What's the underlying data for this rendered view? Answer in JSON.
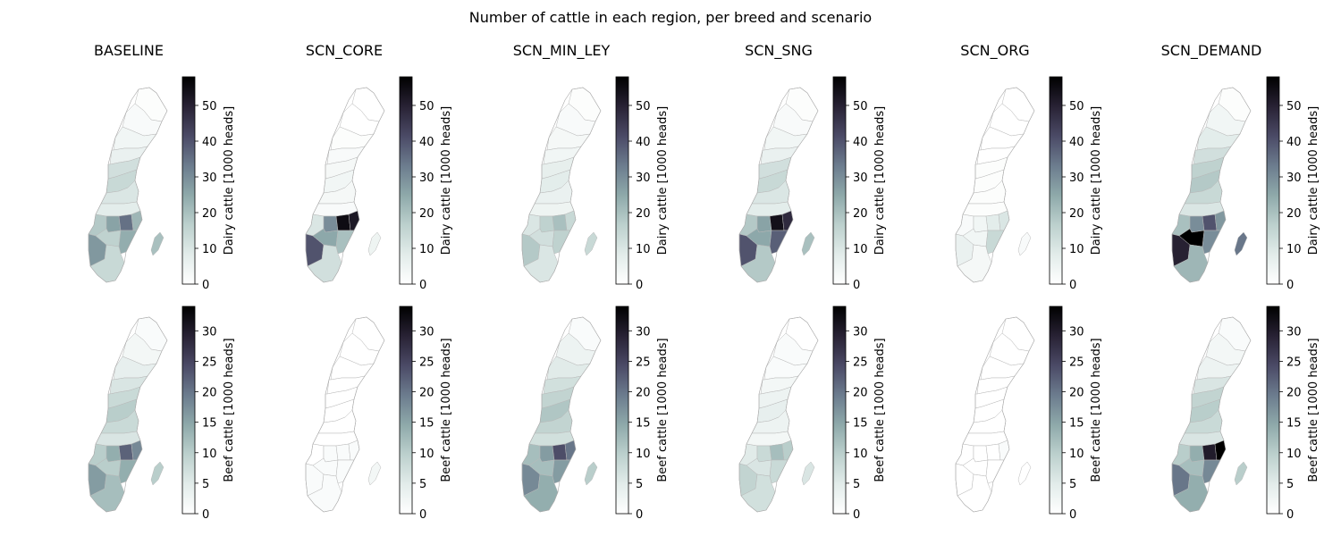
{
  "title": "Number of cattle in each region, per breed and scenario",
  "scenarios": [
    "BASELINE",
    "SCN_CORE",
    "SCN_MIN_LEY",
    "SCN_SNG",
    "SCN_ORG",
    "SCN_DEMAND"
  ],
  "colormap": [
    "#ffffff",
    "#e2ecea",
    "#bcd0cd",
    "#8ea9aa",
    "#6c7c8e",
    "#4b4a66",
    "#282234",
    "#000000"
  ],
  "rows": [
    {
      "breed": "Dairy",
      "colorbar_label": "Dairy cattle [1000 heads]",
      "vmin": 0,
      "vmax": 58,
      "ticks": [
        0,
        10,
        20,
        30,
        40,
        50
      ]
    },
    {
      "breed": "Beef",
      "colorbar_label": "Beef cattle [1000 heads]",
      "vmin": 0,
      "vmax": 34,
      "ticks": [
        0,
        5,
        10,
        15,
        20,
        25,
        30
      ]
    }
  ],
  "map_regions": [
    "north-1",
    "north-2",
    "north-3",
    "north-4",
    "central-1",
    "central-2",
    "central-3",
    "central-4",
    "south-1",
    "south-2",
    "south-3",
    "south-4",
    "south-5",
    "south-6",
    "south-7",
    "south-8",
    "gotland"
  ],
  "values": {
    "Dairy": {
      "BASELINE": [
        1,
        2,
        4,
        6,
        12,
        14,
        10,
        8,
        18,
        26,
        35,
        22,
        28,
        16,
        24,
        14,
        20
      ],
      "SCN_CORE": [
        0,
        0,
        1,
        2,
        3,
        4,
        3,
        2,
        10,
        30,
        55,
        52,
        40,
        25,
        20,
        12,
        5
      ],
      "SCN_MIN_LEY": [
        1,
        2,
        3,
        4,
        7,
        8,
        6,
        5,
        10,
        16,
        20,
        14,
        18,
        12,
        16,
        10,
        14
      ],
      "SCN_SNG": [
        1,
        2,
        4,
        6,
        12,
        14,
        10,
        8,
        18,
        26,
        54,
        48,
        40,
        25,
        38,
        18,
        20
      ],
      "SCN_ORG": [
        0,
        0,
        0,
        0,
        1,
        1,
        1,
        1,
        2,
        4,
        8,
        10,
        6,
        4,
        14,
        3,
        2
      ],
      "SCN_DEMAND": [
        1,
        4,
        8,
        12,
        16,
        18,
        14,
        10,
        20,
        30,
        40,
        28,
        50,
        58,
        30,
        22,
        34
      ]
    },
    "Beef": {
      "BASELINE": [
        1,
        2,
        4,
        6,
        8,
        10,
        8,
        6,
        10,
        14,
        22,
        18,
        16,
        10,
        14,
        12,
        10
      ],
      "SCN_CORE": [
        0,
        0,
        0,
        0,
        0,
        0,
        0,
        0,
        0,
        1,
        1,
        1,
        1,
        1,
        1,
        1,
        2
      ],
      "SCN_MIN_LEY": [
        1,
        3,
        5,
        7,
        9,
        11,
        9,
        7,
        12,
        16,
        24,
        20,
        18,
        12,
        16,
        14,
        10
      ],
      "SCN_SNG": [
        0,
        1,
        1,
        2,
        3,
        4,
        3,
        2,
        5,
        8,
        12,
        10,
        9,
        6,
        8,
        7,
        6
      ],
      "SCN_ORG": [
        0,
        0,
        0,
        0,
        0,
        0,
        0,
        0,
        0,
        0,
        0,
        1,
        0,
        0,
        0,
        0,
        0
      ],
      "SCN_DEMAND": [
        1,
        2,
        3,
        6,
        9,
        10,
        8,
        6,
        10,
        14,
        30,
        34,
        20,
        12,
        18,
        14,
        10
      ]
    }
  }
}
